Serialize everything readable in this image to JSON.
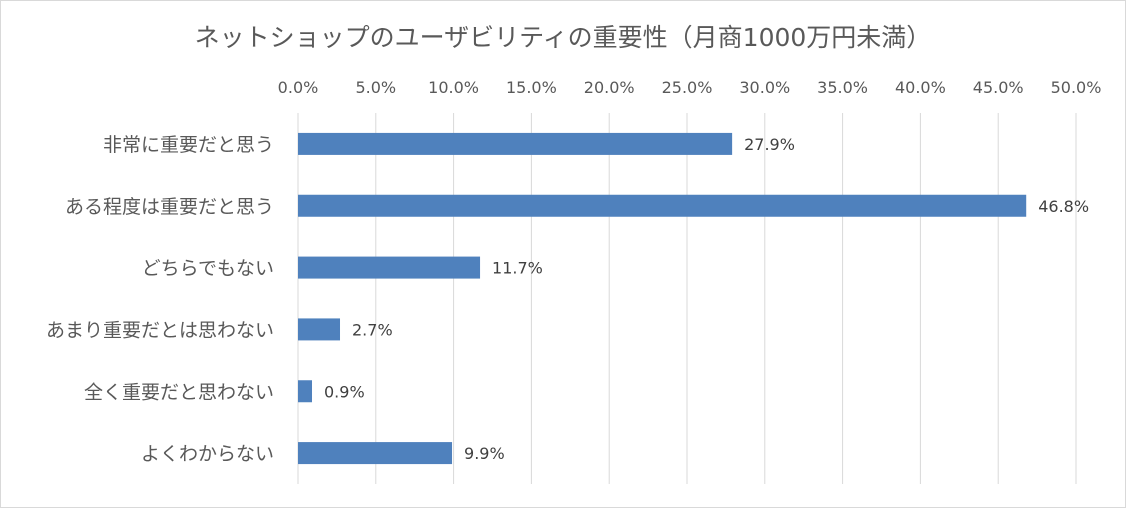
{
  "chart_data": {
    "type": "bar",
    "orientation": "horizontal",
    "title": "ネットショップのユーザビリティの重要性（月商1000万円未満）",
    "categories": [
      "非常に重要だと思う",
      "ある程度は重要だと思う",
      "どちらでもない",
      "あまり重要だとは思わない",
      "全く重要だと思わない",
      "よくわからない"
    ],
    "values": [
      27.9,
      46.8,
      11.7,
      2.7,
      0.9,
      9.9
    ],
    "value_labels": [
      "27.9%",
      "46.8%",
      "11.7%",
      "2.7%",
      "0.9%",
      "9.9%"
    ],
    "xlim": [
      0,
      50
    ],
    "xticks": [
      0,
      5,
      10,
      15,
      20,
      25,
      30,
      35,
      40,
      45,
      50
    ],
    "xtick_labels": [
      "0.0%",
      "5.0%",
      "10.0%",
      "15.0%",
      "20.0%",
      "25.0%",
      "30.0%",
      "35.0%",
      "40.0%",
      "45.0%",
      "50.0%"
    ],
    "axis_position": "top",
    "grid": true,
    "bar_color": "#4f81bd"
  }
}
